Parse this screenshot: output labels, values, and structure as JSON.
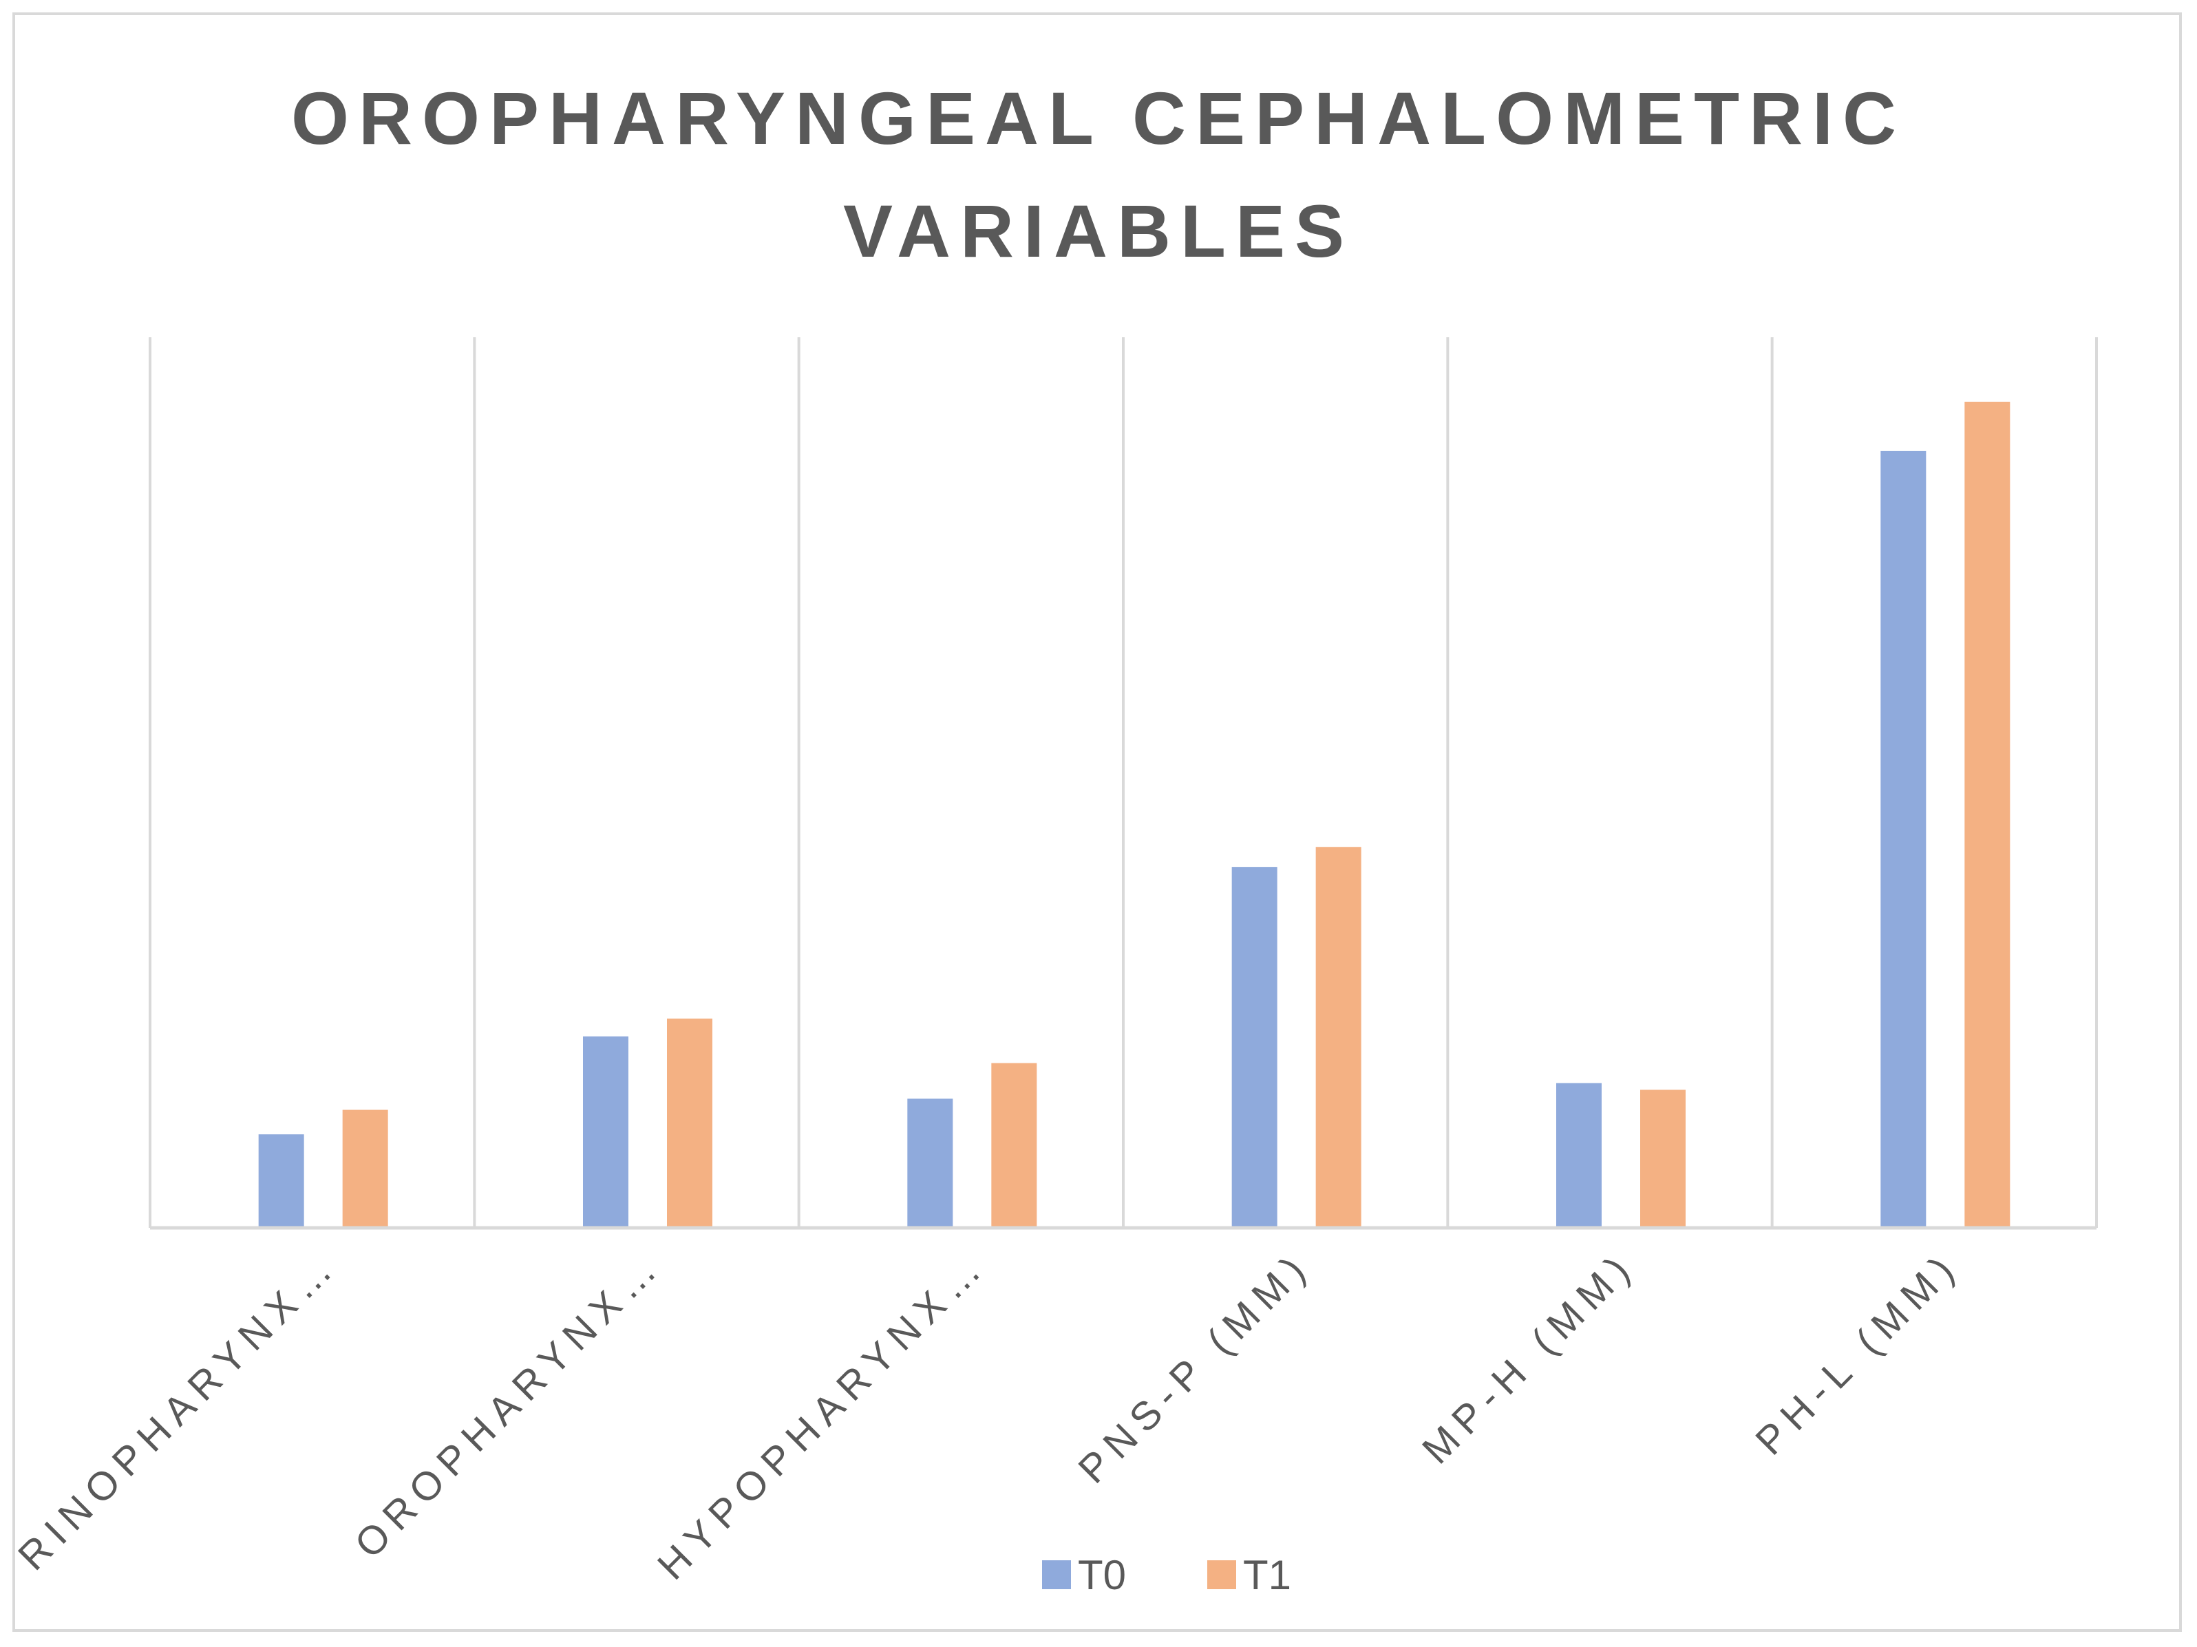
{
  "chart_data": {
    "type": "bar",
    "title": "OROPHARYNGEAL CEPHALOMETRIC VARIABLES",
    "title_lines": [
      "OROPHARYNGEAL CEPHALOMETRIC",
      "VARIABLES"
    ],
    "categories": [
      "RINOPHARYNX…",
      "OROPHARYNX…",
      "HYPOPHARYNX…",
      "PNS-P (MM)",
      "MP-H (MM)",
      "PH-L (MM)"
    ],
    "series": [
      {
        "name": "T0",
        "color": "#8faadc",
        "values": [
          4.2,
          8.6,
          5.8,
          16.2,
          6.5,
          34.9
        ]
      },
      {
        "name": "T1",
        "color": "#f4b183",
        "values": [
          5.3,
          9.4,
          7.4,
          17.1,
          6.2,
          37.1
        ]
      }
    ],
    "ylim": [
      0,
      40
    ],
    "gridlines": "vertical category separators",
    "legend": "bottom-center",
    "xlabel": "",
    "ylabel": ""
  }
}
